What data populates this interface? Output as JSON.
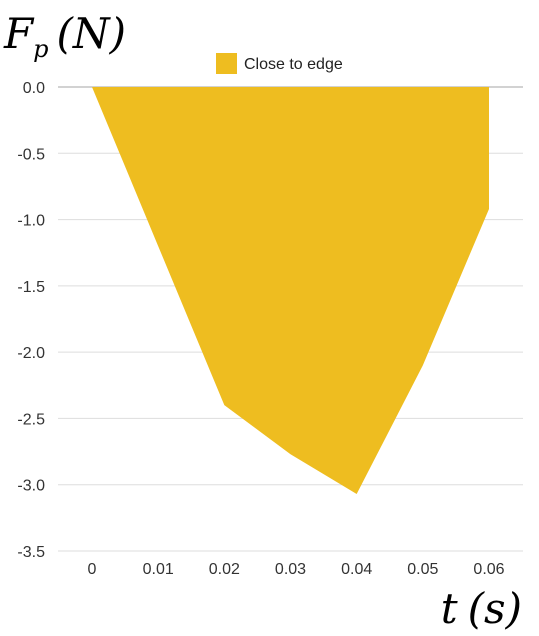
{
  "chart_data": {
    "type": "area",
    "title": "",
    "ylabel": {
      "main": "F",
      "sub": "p",
      "unit": "(N)"
    },
    "xlabel": {
      "main": "t",
      "unit": "(s)"
    },
    "x": [
      0,
      0.01,
      0.02,
      0.03,
      0.04,
      0.05,
      0.06
    ],
    "xtick_labels": [
      "0",
      "0.01",
      "0.02",
      "0.03",
      "0.04",
      "0.05",
      "0.06"
    ],
    "ylim": [
      -3.5,
      0.0
    ],
    "ytick_labels": [
      "0.0",
      "-0.5",
      "-1.0",
      "-1.5",
      "-2.0",
      "-2.5",
      "-3.0",
      "-3.5"
    ],
    "grid": true,
    "legend_position": "top-center",
    "series": [
      {
        "name": "Close to edge",
        "color": "#EEBD20",
        "values": [
          0.0,
          -1.2,
          -2.4,
          -2.77,
          -3.07,
          -2.1,
          -0.92
        ]
      }
    ]
  }
}
